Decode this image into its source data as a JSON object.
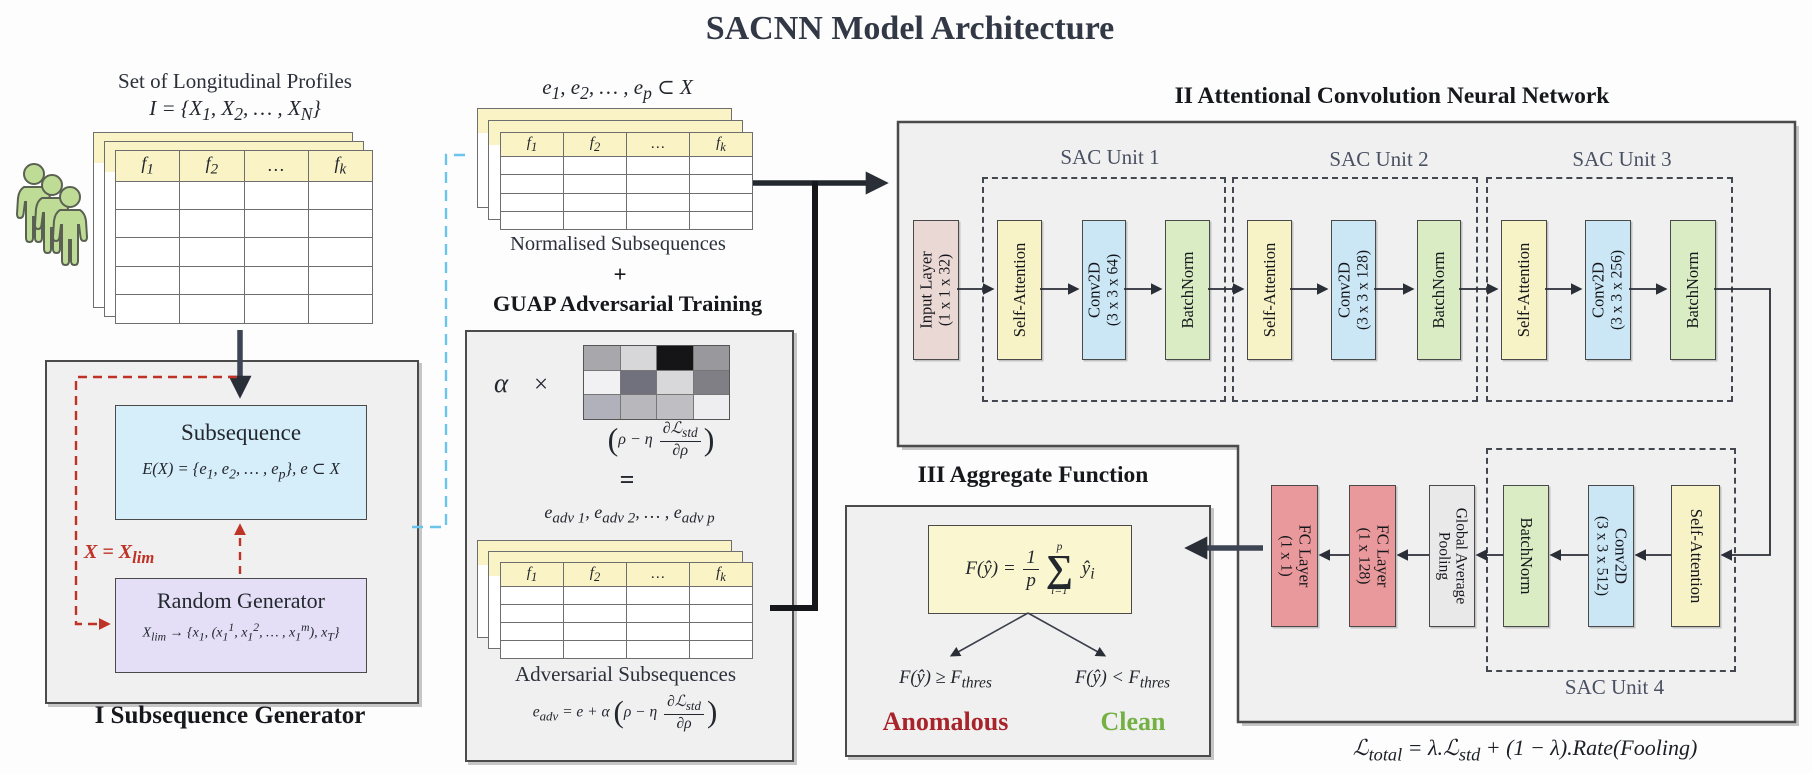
{
  "title": "SACNN Model Architecture",
  "left": {
    "profiles_label": "Set of Longitudinal Profiles",
    "profiles_formula": "I = {X<sub>1</sub>, X<sub>2</sub>, … , X<sub>N</sub>}",
    "table_headers": [
      "f<sub>1</sub>",
      "f<sub>2</sub>",
      "…",
      "f<sub>k</sub>"
    ],
    "generator": {
      "label": "I Subsequence Generator",
      "subsequence_title": "Subsequence",
      "subsequence_formula": "E(X) = {e<sub>1</sub>, e<sub>2</sub>, … , e<sub>p</sub>}, e ⊂ X",
      "loop_label": "X = X<sub>lim</sub>",
      "random_title": "Random Generator",
      "random_formula": "X<sub>lim</sub> → {x<sub>1</sub>, (x<sub>1</sub><sup>1</sup>, x<sub>1</sub><sup>2</sup>, … , x<sub>1</sub><sup>m</sup>), x<sub>T</sub>}"
    }
  },
  "middle": {
    "subset_formula": "e<sub>1</sub>, e<sub>2</sub>, … , e<sub>p</sub> ⊂ X",
    "normalised_label": "Normalised Subsequences",
    "plus": "+",
    "guap": {
      "title": "GUAP Adversarial Training",
      "alpha": "α",
      "times": "×",
      "grid_colors": [
        "#a7a7ac",
        "#d7d7d9",
        "#151518",
        "#98989d",
        "#f1f1f3",
        "#71717e",
        "#d8d8db",
        "#7f7f85",
        "#b1b1bc",
        "#b7b7bc",
        "#bfbfc3",
        "#eeeef0"
      ],
      "perturb_formula": "<span class=\"bp\">(</span>ρ − η <span class=\"frac\"><span class=\"num\">∂ℒ<sub>std</sub></span><span class=\"den\">∂ρ</span></span><span class=\"bp\">)</span>",
      "equals": "=",
      "adv_sequence": "e<sub>adv 1</sub>, e<sub>adv 2</sub>, … , e<sub>adv p</sub>",
      "adv_label": "Adversarial Subsequences",
      "adv_formula": "e<sub>adv</sub> = e + α <span class=\"bp\">(</span>ρ − η <span class=\"frac\"><span class=\"num\">∂ℒ<sub>std</sub></span><span class=\"den\">∂ρ</span></span><span class=\"bp\">)</span>"
    }
  },
  "acnn": {
    "title": "II Attentional Convolution Neural Network",
    "input_line1": "Input Layer",
    "input_line2": "(1 x 1 x 32)",
    "self_attention": "Self-Attention",
    "conv2d": "Conv2D",
    "batchnorm": "BatchNorm",
    "units": [
      {
        "name": "SAC Unit 1",
        "conv_dims": "(3 x 3 x 64)"
      },
      {
        "name": "SAC Unit 2",
        "conv_dims": "(3 x 3 x 128)"
      },
      {
        "name": "SAC Unit 3",
        "conv_dims": "(3 x 3 x 256)"
      },
      {
        "name": "SAC Unit 4",
        "conv_dims": "(3 x 3 x 512)"
      }
    ],
    "gap_line1": "Global Average",
    "gap_line2": "Pooling",
    "fc128_line1": "FC Layer",
    "fc128_line2": "(1 x 128)",
    "fc1_line1": "FC Layer",
    "fc1_line2": "(1 x 1)",
    "loss_formula": "ℒ<sub>total</sub> = λ.ℒ<sub>std</sub> + (1 − λ).Rate(Fooling)"
  },
  "aggregate": {
    "title": "III Aggregate Function",
    "formula": "F(ŷ) = <span class=\"frac\"><span class=\"num\">1</span><span class=\"den\">p</span></span><span class=\"sum\"><span class=\"s-top\">p</span><span class=\"s-sig\">∑</span><span class=\"s-bot\">i=1</span></span> ŷ<sub>i</sub>",
    "cond_anomalous": "F(ŷ) ≥ F<sub>thres</sub>",
    "cond_clean": "F(ŷ) < F<sub>thres</sub>",
    "anomalous_label": "Anomalous",
    "clean_label": "Clean"
  },
  "colors": {
    "anomalous": "#a8232a",
    "clean": "#74b043",
    "accent_red": "#bf3327",
    "accent_cyan": "#6ac4ee",
    "box_yellow": "#f7f3c6",
    "box_blue": "#cbe6f5",
    "box_green": "#d9ecc4",
    "box_pink": "#ead8d4",
    "box_red": "#e9999b",
    "box_gap": "#e9e9ea",
    "box_subseq": "#d6eefa",
    "box_random": "#e4dff7",
    "box_formula": "#faf6d0",
    "header_yellow": "#faf3c5"
  }
}
